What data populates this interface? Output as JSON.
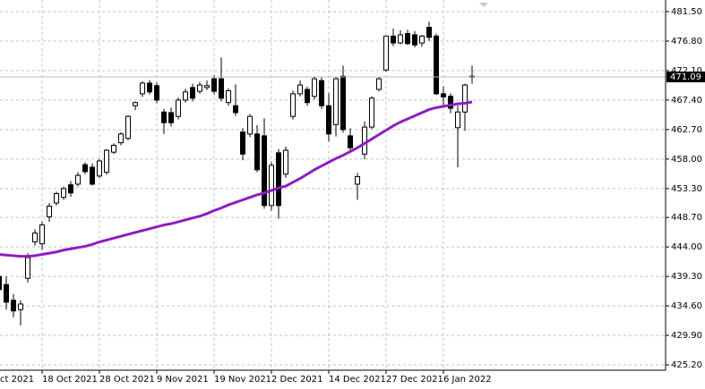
{
  "chart_data": {
    "type": "candlestick",
    "categories": [
      "ct 2021",
      null,
      null,
      null,
      null,
      null,
      "18 Oct 2021",
      null,
      null,
      null,
      null,
      null,
      null,
      null,
      "28 Oct 2021",
      null,
      null,
      null,
      null,
      null,
      null,
      null,
      "9 Nov 2021",
      null,
      null,
      null,
      null,
      null,
      null,
      null,
      "19 Nov 2021",
      null,
      null,
      null,
      null,
      null,
      null,
      null,
      "2 Dec 2021",
      null,
      null,
      null,
      null,
      null,
      null,
      null,
      "14 Dec 2021",
      null,
      null,
      null,
      null,
      null,
      null,
      null,
      "27 Dec 2021",
      null,
      null,
      null,
      null,
      null,
      null,
      null,
      "6 Jan 2022",
      null,
      null,
      null,
      null
    ],
    "open": [
      439.3,
      438.0,
      435.5,
      434.0,
      439.0,
      444.8,
      444.5,
      448.8,
      451.0,
      451.9,
      453.9,
      454.0,
      457.1,
      456.7,
      455.3,
      455.9,
      459.1,
      460.6,
      461.3,
      466.5,
      468.4,
      470.1,
      469.7,
      465.5,
      465.4,
      464.8,
      467.4,
      469.4,
      468.8,
      469.4,
      470.8,
      470.8,
      467.0,
      466.5,
      462.3,
      462.0,
      462.0,
      461.7,
      450.6,
      459.0,
      455.6,
      464.8,
      468.4,
      469.1,
      468.0,
      470.5,
      466.5,
      463.5,
      471.2,
      461.7,
      454.0,
      458.8,
      463.1,
      469.1,
      472.2,
      477.6,
      476.5,
      478.0,
      477.8,
      476.5,
      479.0,
      477.6,
      468.4,
      468.0,
      463.0,
      465.5,
      471.2
    ],
    "high": [
      440.0,
      439.3,
      436.5,
      435.5,
      443.0,
      446.8,
      448.0,
      451.0,
      452.8,
      453.6,
      454.5,
      455.9,
      457.5,
      457.3,
      458.0,
      459.6,
      460.5,
      462.3,
      465.0,
      467.2,
      470.4,
      470.6,
      470.2,
      466.0,
      466.2,
      467.8,
      469.2,
      470.0,
      470.3,
      470.5,
      471.4,
      474.2,
      469.3,
      469.9,
      462.9,
      465.2,
      463.4,
      464.5,
      457.5,
      459.6,
      460.0,
      468.9,
      470.5,
      469.5,
      471.2,
      471.0,
      468.5,
      471.0,
      472.9,
      462.9,
      455.8,
      464.0,
      468.0,
      471.0,
      477.7,
      478.8,
      478.5,
      478.6,
      478.4,
      477.8,
      479.9,
      478.0,
      469.6,
      468.5,
      466.5,
      470.0,
      472.9
    ],
    "low": [
      436.5,
      434.0,
      432.8,
      431.5,
      438.3,
      444.2,
      443.5,
      448.0,
      450.6,
      451.5,
      452.0,
      453.6,
      455.6,
      453.8,
      455.0,
      455.5,
      458.8,
      460.2,
      461.0,
      465.8,
      467.9,
      468.3,
      466.9,
      462.0,
      463.2,
      464.3,
      467.0,
      467.2,
      468.4,
      469.0,
      468.3,
      467.2,
      466.5,
      464.9,
      457.8,
      461.5,
      455.9,
      450.1,
      449.8,
      448.5,
      455.0,
      464.3,
      468.0,
      466.5,
      467.5,
      466.0,
      460.8,
      461.6,
      462.2,
      459.0,
      451.5,
      458.0,
      462.8,
      468.8,
      471.9,
      476.0,
      476.3,
      476.2,
      475.8,
      475.9,
      476.8,
      468.2,
      466.4,
      465.3,
      456.7,
      462.5,
      470.0
    ],
    "close": [
      437.2,
      435.2,
      433.8,
      434.9,
      442.3,
      446.2,
      447.5,
      450.5,
      452.5,
      453.3,
      452.6,
      455.4,
      456.0,
      454.0,
      457.7,
      459.4,
      460.2,
      462.0,
      464.8,
      467.0,
      470.1,
      468.7,
      467.4,
      463.8,
      463.8,
      467.4,
      468.7,
      467.7,
      469.8,
      469.7,
      468.8,
      467.7,
      468.9,
      465.4,
      458.8,
      464.8,
      456.3,
      450.6,
      457.0,
      450.6,
      459.4,
      468.4,
      469.8,
      467.0,
      470.8,
      466.5,
      462.0,
      470.8,
      462.7,
      459.8,
      455.2,
      463.1,
      467.7,
      470.8,
      477.6,
      476.5,
      477.8,
      476.4,
      476.2,
      477.6,
      477.4,
      468.4,
      467.9,
      466.1,
      465.5,
      469.8,
      471.1
    ],
    "moving_average": {
      "color": "#8e1cc4",
      "values": [
        442.8,
        442.7,
        442.6,
        442.5,
        442.5,
        442.6,
        442.8,
        443.0,
        443.2,
        443.5,
        443.7,
        443.9,
        444.1,
        444.4,
        444.8,
        445.1,
        445.4,
        445.7,
        446.0,
        446.3,
        446.6,
        446.9,
        447.2,
        447.5,
        447.7,
        448.0,
        448.3,
        448.6,
        448.9,
        449.3,
        449.8,
        450.2,
        450.7,
        451.1,
        451.5,
        451.9,
        452.3,
        452.6,
        453.0,
        453.4,
        453.7,
        454.3,
        454.9,
        455.6,
        456.3,
        456.9,
        457.5,
        458.1,
        458.6,
        459.2,
        459.8,
        460.5,
        461.2,
        461.9,
        462.6,
        463.3,
        463.9,
        464.4,
        464.9,
        465.4,
        465.9,
        466.2,
        466.4,
        466.6,
        466.8,
        466.9,
        467.1
      ]
    },
    "last_price": {
      "value": 471.09,
      "label": "471.09"
    },
    "ylim": [
      424.35,
      483.35
    ],
    "yticks": [
      {
        "value": 481.5,
        "label": "481.50"
      },
      {
        "value": 476.8,
        "label": "476.80"
      },
      {
        "value": 472.1,
        "label": "472.10"
      },
      {
        "value": 467.4,
        "label": "467.40"
      },
      {
        "value": 462.7,
        "label": "462.70"
      },
      {
        "value": 458.0,
        "label": "458.00"
      },
      {
        "value": 453.3,
        "label": "453.30"
      },
      {
        "value": 448.7,
        "label": "448.70"
      },
      {
        "value": 444.0,
        "label": "444.00"
      },
      {
        "value": 439.3,
        "label": "439.30"
      },
      {
        "value": 434.6,
        "label": "434.60"
      },
      {
        "value": 429.9,
        "label": "429.90"
      },
      {
        "value": 425.2,
        "label": "425.20"
      }
    ],
    "grid": true
  }
}
